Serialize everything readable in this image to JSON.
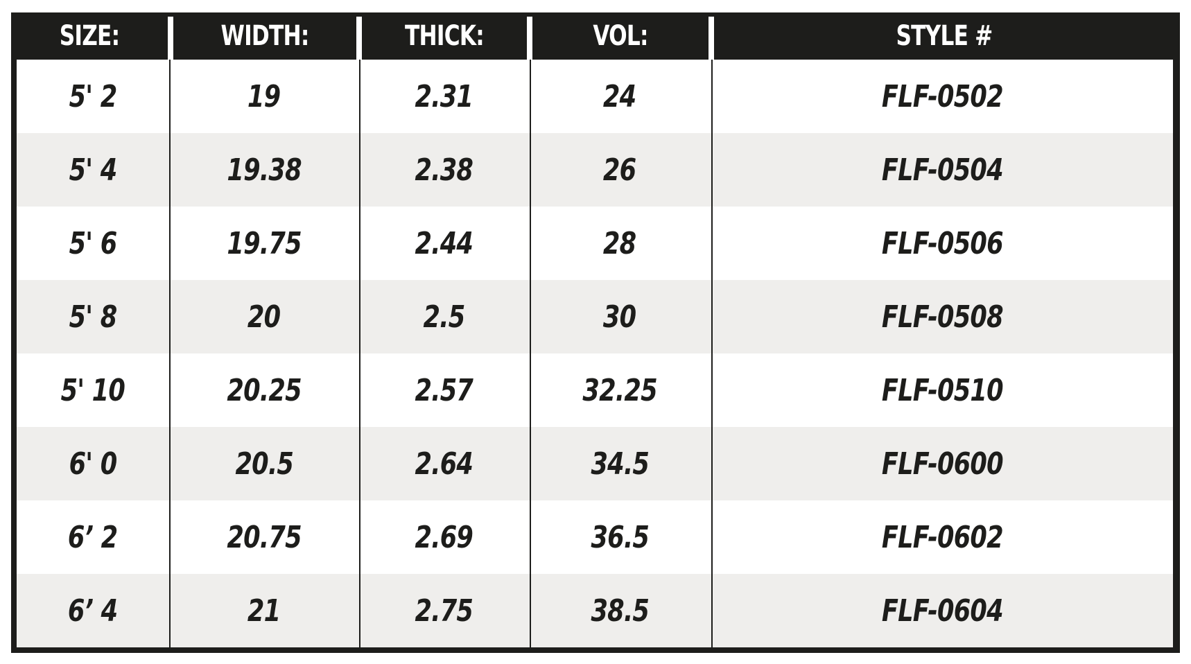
{
  "colors": {
    "header_bg": "#1d1d1b",
    "header_text": "#ffffff",
    "row_alt": "#efeeec",
    "row_plain": "#ffffff",
    "text": "#1d1d1b"
  },
  "table": {
    "headers": [
      "SIZE:",
      "WIDTH:",
      "THICK:",
      "VOL:",
      "STYLE #"
    ],
    "rows": [
      [
        "5' 2",
        "19",
        "2.31",
        "24",
        "FLF-0502"
      ],
      [
        "5' 4",
        "19.38",
        "2.38",
        "26",
        "FLF-0504"
      ],
      [
        "5' 6",
        "19.75",
        "2.44",
        "28",
        "FLF-0506"
      ],
      [
        "5' 8",
        "20",
        "2.5",
        "30",
        "FLF-0508"
      ],
      [
        "5' 10",
        "20.25",
        "2.57",
        "32.25",
        "FLF-0510"
      ],
      [
        "6' 0",
        "20.5",
        "2.64",
        "34.5",
        "FLF-0600"
      ],
      [
        "6’ 2",
        "20.75",
        "2.69",
        "36.5",
        "FLF-0602"
      ],
      [
        "6’ 4",
        "21",
        "2.75",
        "38.5",
        "FLF-0604"
      ]
    ]
  }
}
